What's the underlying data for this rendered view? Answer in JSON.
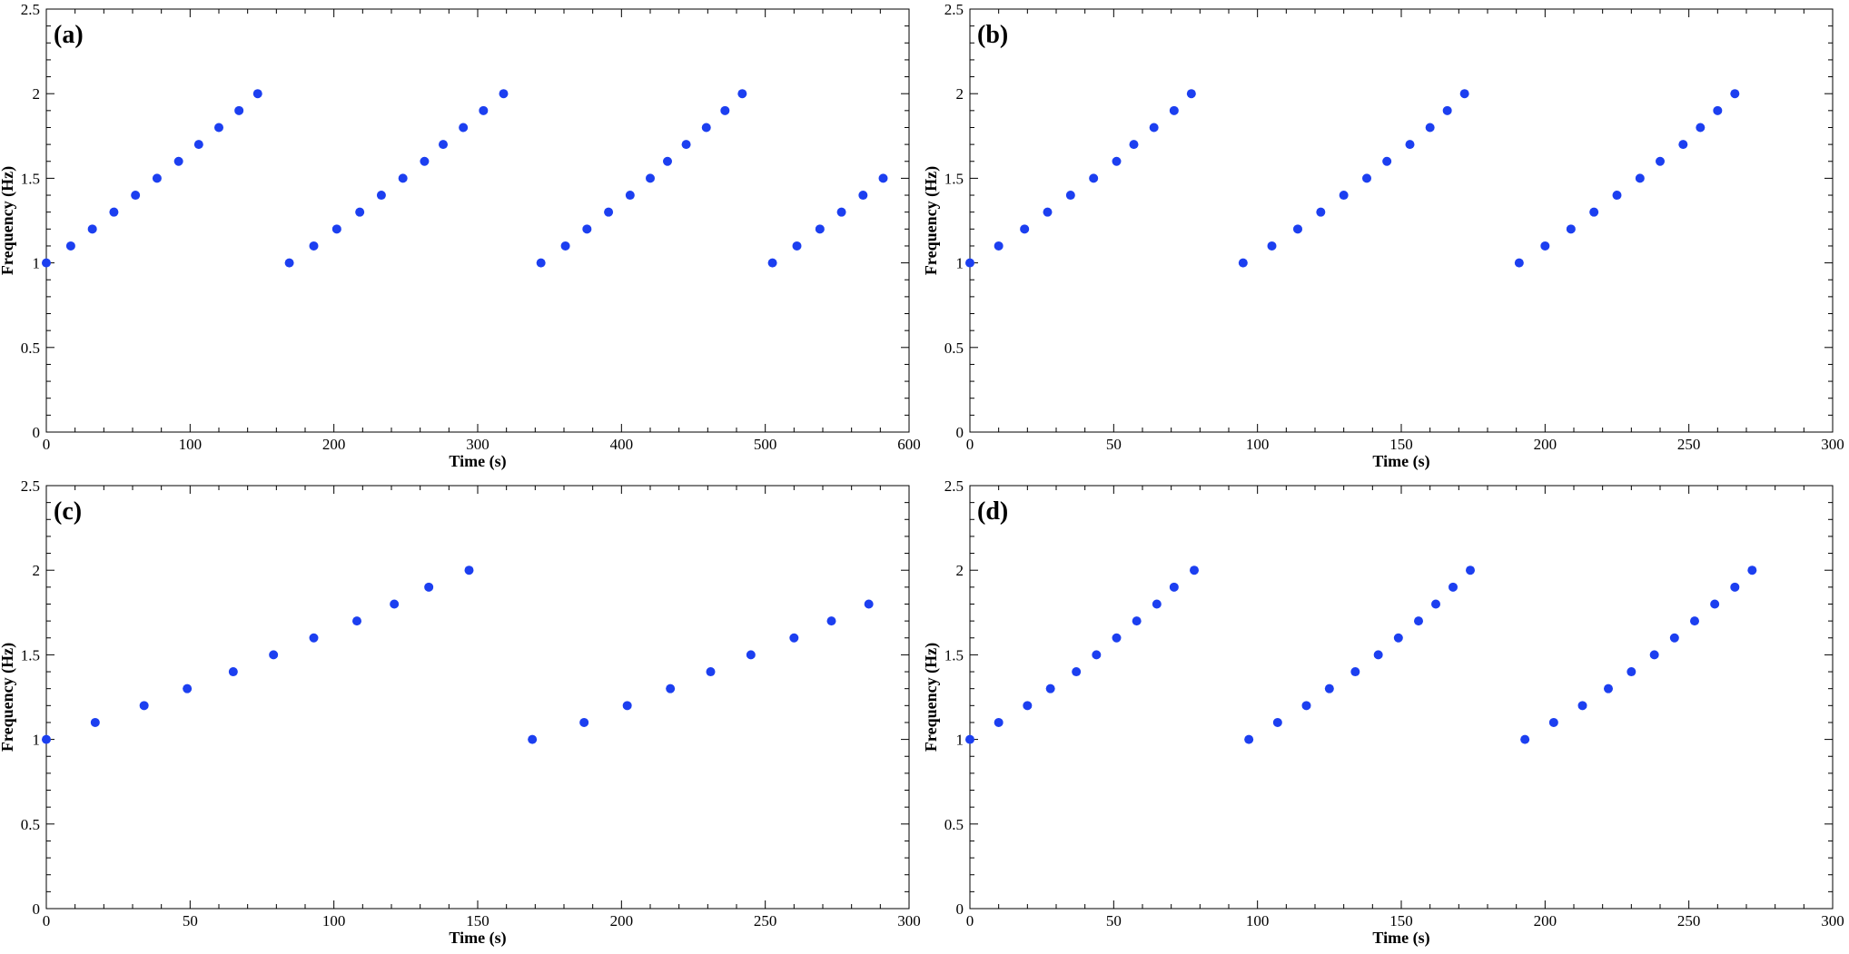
{
  "colors": {
    "marker": "#1c3ff0",
    "axis": "#000000"
  },
  "chart_data": [
    {
      "type": "scatter",
      "panel_label": "(a)",
      "xlabel": "Time (s)",
      "ylabel": "Frequency (Hz)",
      "xlim": [
        0,
        600
      ],
      "ylim": [
        0,
        2.5
      ],
      "xticks": [
        0,
        100,
        200,
        300,
        400,
        500,
        600
      ],
      "yticks": [
        0,
        0.5,
        1,
        1.5,
        2,
        2.5
      ],
      "grid": false,
      "series": [
        {
          "x": [
            0,
            17,
            32,
            47,
            62,
            77,
            92,
            106,
            120,
            134,
            147,
            169,
            186,
            202,
            218,
            233,
            248,
            263,
            276,
            290,
            304,
            318,
            344,
            361,
            376,
            391,
            406,
            420,
            432,
            445,
            459,
            472,
            484,
            505,
            522,
            538,
            553,
            568,
            582
          ],
          "y": [
            1,
            1.1,
            1.2,
            1.3,
            1.4,
            1.5,
            1.6,
            1.7,
            1.8,
            1.9,
            2,
            1,
            1.1,
            1.2,
            1.3,
            1.4,
            1.5,
            1.6,
            1.7,
            1.8,
            1.9,
            2,
            1,
            1.1,
            1.2,
            1.3,
            1.4,
            1.5,
            1.6,
            1.7,
            1.8,
            1.9,
            2,
            1,
            1.1,
            1.2,
            1.3,
            1.4,
            1.5
          ]
        }
      ]
    },
    {
      "type": "scatter",
      "panel_label": "(b)",
      "xlabel": "Time (s)",
      "ylabel": "Frequency (Hz)",
      "xlim": [
        0,
        300
      ],
      "ylim": [
        0,
        2.5
      ],
      "xticks": [
        0,
        50,
        100,
        150,
        200,
        250,
        300
      ],
      "yticks": [
        0,
        0.5,
        1,
        1.5,
        2,
        2.5
      ],
      "grid": false,
      "series": [
        {
          "x": [
            0,
            10,
            19,
            27,
            35,
            43,
            51,
            57,
            64,
            71,
            77,
            95,
            105,
            114,
            122,
            130,
            138,
            145,
            153,
            160,
            166,
            172,
            191,
            200,
            209,
            217,
            225,
            233,
            240,
            248,
            254,
            260,
            266
          ],
          "y": [
            1,
            1.1,
            1.2,
            1.3,
            1.4,
            1.5,
            1.6,
            1.7,
            1.8,
            1.9,
            2,
            1,
            1.1,
            1.2,
            1.3,
            1.4,
            1.5,
            1.6,
            1.7,
            1.8,
            1.9,
            2,
            1,
            1.1,
            1.2,
            1.3,
            1.4,
            1.5,
            1.6,
            1.7,
            1.8,
            1.9,
            2
          ]
        }
      ]
    },
    {
      "type": "scatter",
      "panel_label": "(c)",
      "xlabel": "Time (s)",
      "ylabel": "Frequency (Hz)",
      "xlim": [
        0,
        300
      ],
      "ylim": [
        0,
        2.5
      ],
      "xticks": [
        0,
        50,
        100,
        150,
        200,
        250,
        300
      ],
      "yticks": [
        0,
        0.5,
        1,
        1.5,
        2,
        2.5
      ],
      "grid": false,
      "series": [
        {
          "x": [
            0,
            17,
            34,
            49,
            65,
            79,
            93,
            108,
            121,
            133,
            147,
            169,
            187,
            202,
            217,
            231,
            245,
            260,
            273,
            286
          ],
          "y": [
            1,
            1.1,
            1.2,
            1.3,
            1.4,
            1.5,
            1.6,
            1.7,
            1.8,
            1.9,
            2,
            1,
            1.1,
            1.2,
            1.3,
            1.4,
            1.5,
            1.6,
            1.7,
            1.8
          ]
        }
      ]
    },
    {
      "type": "scatter",
      "panel_label": "(d)",
      "xlabel": "Time (s)",
      "ylabel": "Frequency (Hz)",
      "xlim": [
        0,
        300
      ],
      "ylim": [
        0,
        2.5
      ],
      "xticks": [
        0,
        50,
        100,
        150,
        200,
        250,
        300
      ],
      "yticks": [
        0,
        0.5,
        1,
        1.5,
        2,
        2.5
      ],
      "grid": false,
      "series": [
        {
          "x": [
            0,
            10,
            20,
            28,
            37,
            44,
            51,
            58,
            65,
            71,
            78,
            97,
            107,
            117,
            125,
            134,
            142,
            149,
            156,
            162,
            168,
            174,
            193,
            203,
            213,
            222,
            230,
            238,
            245,
            252,
            259,
            266,
            272
          ],
          "y": [
            1,
            1.1,
            1.2,
            1.3,
            1.4,
            1.5,
            1.6,
            1.7,
            1.8,
            1.9,
            2,
            1,
            1.1,
            1.2,
            1.3,
            1.4,
            1.5,
            1.6,
            1.7,
            1.8,
            1.9,
            2,
            1,
            1.1,
            1.2,
            1.3,
            1.4,
            1.5,
            1.6,
            1.7,
            1.8,
            1.9,
            2
          ]
        }
      ]
    }
  ]
}
